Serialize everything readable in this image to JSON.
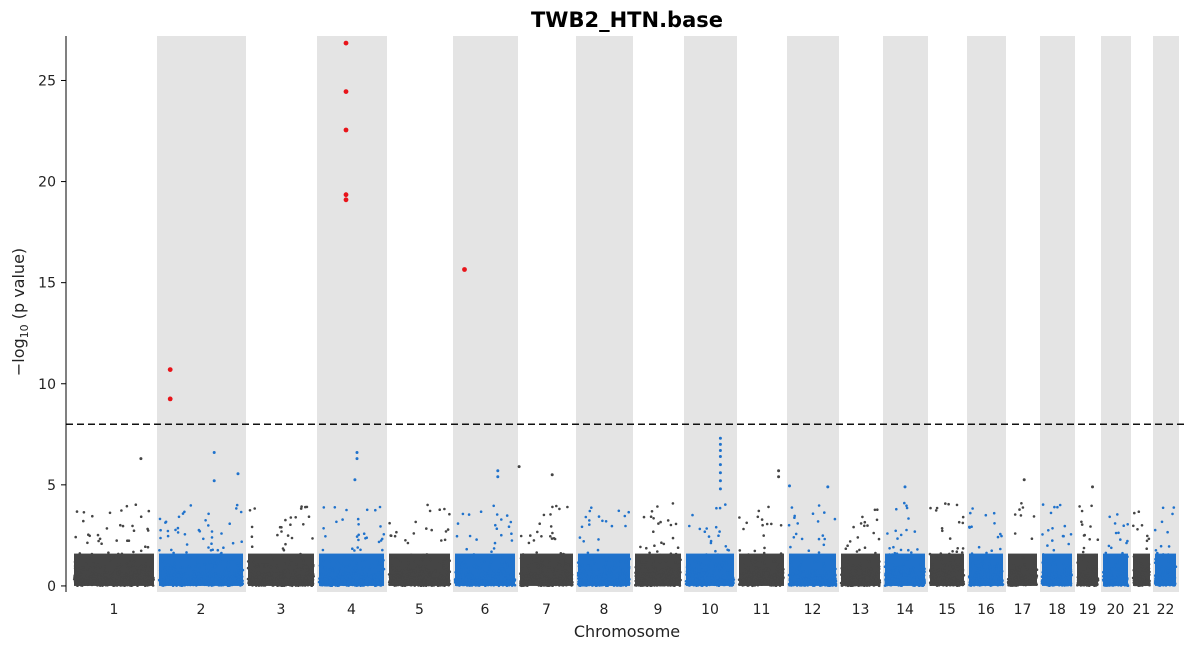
{
  "chart_data": {
    "type": "scatter",
    "title": "TWB2_HTN.base",
    "xlabel": "Chromosome",
    "ylabel_parts": {
      "pre": "−log",
      "sub": "10",
      "post": " (p value)"
    },
    "ylim": [
      -0.3,
      27.2
    ],
    "yticks": [
      0,
      5,
      10,
      15,
      20,
      25
    ],
    "significance_threshold": 8,
    "chromosomes": [
      "1",
      "2",
      "3",
      "4",
      "5",
      "6",
      "7",
      "8",
      "9",
      "10",
      "11",
      "12",
      "13",
      "14",
      "15",
      "16",
      "17",
      "18",
      "19",
      "20",
      "21",
      "22"
    ],
    "shaded_chromosomes": [
      "2",
      "4",
      "6",
      "8",
      "10",
      "12",
      "14",
      "16",
      "18",
      "20",
      "22"
    ],
    "colors": {
      "odd": "#454545",
      "even": "#1f72cc",
      "significant": "#e8141a",
      "shade": "#e4e4e4",
      "threshold": "#111111"
    },
    "significant_points": [
      {
        "chr": "2",
        "pos": 0.15,
        "y": 10.7
      },
      {
        "chr": "2",
        "pos": 0.15,
        "y": 9.25
      },
      {
        "chr": "4",
        "pos": 0.42,
        "y": 26.85
      },
      {
        "chr": "4",
        "pos": 0.42,
        "y": 24.45
      },
      {
        "chr": "4",
        "pos": 0.42,
        "y": 22.55
      },
      {
        "chr": "4",
        "pos": 0.42,
        "y": 19.35
      },
      {
        "chr": "4",
        "pos": 0.42,
        "y": 19.1
      },
      {
        "chr": "6",
        "pos": 0.18,
        "y": 15.65
      }
    ],
    "notable_points": [
      {
        "chr": "1",
        "pos": 0.82,
        "y": 6.3
      },
      {
        "chr": "2",
        "pos": 0.65,
        "y": 6.6
      },
      {
        "chr": "2",
        "pos": 0.92,
        "y": 5.55
      },
      {
        "chr": "2",
        "pos": 0.65,
        "y": 5.2
      },
      {
        "chr": "4",
        "pos": 0.58,
        "y": 6.6
      },
      {
        "chr": "4",
        "pos": 0.58,
        "y": 6.3
      },
      {
        "chr": "4",
        "pos": 0.55,
        "y": 5.25
      },
      {
        "chr": "6",
        "pos": 0.7,
        "y": 5.7
      },
      {
        "chr": "6",
        "pos": 0.7,
        "y": 5.4
      },
      {
        "chr": "7",
        "pos": 0.02,
        "y": 5.9
      },
      {
        "chr": "7",
        "pos": 0.6,
        "y": 5.5
      },
      {
        "chr": "10",
        "pos": 0.7,
        "y": 7.3
      },
      {
        "chr": "10",
        "pos": 0.7,
        "y": 7.0
      },
      {
        "chr": "10",
        "pos": 0.7,
        "y": 6.7
      },
      {
        "chr": "10",
        "pos": 0.7,
        "y": 6.4
      },
      {
        "chr": "10",
        "pos": 0.7,
        "y": 6.0
      },
      {
        "chr": "10",
        "pos": 0.7,
        "y": 5.6
      },
      {
        "chr": "10",
        "pos": 0.7,
        "y": 5.2
      },
      {
        "chr": "10",
        "pos": 0.7,
        "y": 4.8
      },
      {
        "chr": "11",
        "pos": 0.85,
        "y": 5.7
      },
      {
        "chr": "11",
        "pos": 0.85,
        "y": 5.4
      },
      {
        "chr": "12",
        "pos": 0.05,
        "y": 4.95
      },
      {
        "chr": "12",
        "pos": 0.8,
        "y": 4.9
      },
      {
        "chr": "14",
        "pos": 0.5,
        "y": 4.9
      },
      {
        "chr": "17",
        "pos": 0.55,
        "y": 5.25
      },
      {
        "chr": "19",
        "pos": 0.7,
        "y": 4.9
      }
    ]
  }
}
